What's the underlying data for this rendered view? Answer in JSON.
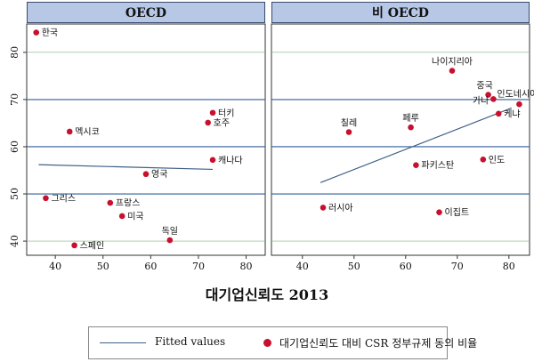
{
  "chart_data": {
    "type": "scatter",
    "xlabel": "대기업신뢰도 2013",
    "ylabel": "",
    "xlim": [
      34,
      84
    ],
    "ylim": [
      37,
      86
    ],
    "xticks": [
      40,
      50,
      60,
      70,
      80
    ],
    "yticks": [
      40,
      50,
      60,
      70,
      80
    ],
    "colors": {
      "points": "#c8102e",
      "fit": "#3f5f86",
      "grid": "#2f5f9a",
      "header": "#b7c7e6"
    },
    "panels": [
      {
        "title": "OECD",
        "fitted": {
          "x1": 36.5,
          "y1": 56.2,
          "x2": 73,
          "y2": 55.2
        },
        "points": [
          {
            "label": "한국",
            "x": 36,
            "y": 84.2
          },
          {
            "label": "멕시코",
            "x": 43,
            "y": 63.2
          },
          {
            "label": "터키",
            "x": 73,
            "y": 67.2
          },
          {
            "label": "호주",
            "x": 72,
            "y": 65.1
          },
          {
            "label": "캐나다",
            "x": 73,
            "y": 57.2
          },
          {
            "label": "영국",
            "x": 59,
            "y": 54.2
          },
          {
            "label": "그리스",
            "x": 38,
            "y": 49.1
          },
          {
            "label": "프랑스",
            "x": 51.5,
            "y": 48.1
          },
          {
            "label": "미국",
            "x": 54,
            "y": 45.3
          },
          {
            "label": "독일",
            "x": 64,
            "y": 40.2
          },
          {
            "label": "스페인",
            "x": 44,
            "y": 39.1
          }
        ]
      },
      {
        "title": "비 OECD",
        "fitted": {
          "x1": 43.5,
          "y1": 52.4,
          "x2": 80.5,
          "y2": 68.2
        },
        "points": [
          {
            "label": "나이지리아",
            "x": 69,
            "y": 76.1
          },
          {
            "label": "중국",
            "x": 76,
            "y": 71.0
          },
          {
            "label": "가나",
            "x": 77,
            "y": 70.1
          },
          {
            "label": "인도네시아",
            "x": 82,
            "y": 69.0
          },
          {
            "label": "케냐",
            "x": 78,
            "y": 67.0
          },
          {
            "label": "칠레",
            "x": 49,
            "y": 63.1
          },
          {
            "label": "페루",
            "x": 61,
            "y": 64.1
          },
          {
            "label": "인도",
            "x": 75,
            "y": 57.3
          },
          {
            "label": "파키스탄",
            "x": 62,
            "y": 56.1
          },
          {
            "label": "러시아",
            "x": 44,
            "y": 47.1
          },
          {
            "label": "이집트",
            "x": 66.5,
            "y": 46.1
          }
        ]
      }
    ]
  },
  "legend": {
    "fitted_label": "Fitted values",
    "points_label": "대기업신뢰도 대비 CSR 정부규제 동의 비율"
  }
}
